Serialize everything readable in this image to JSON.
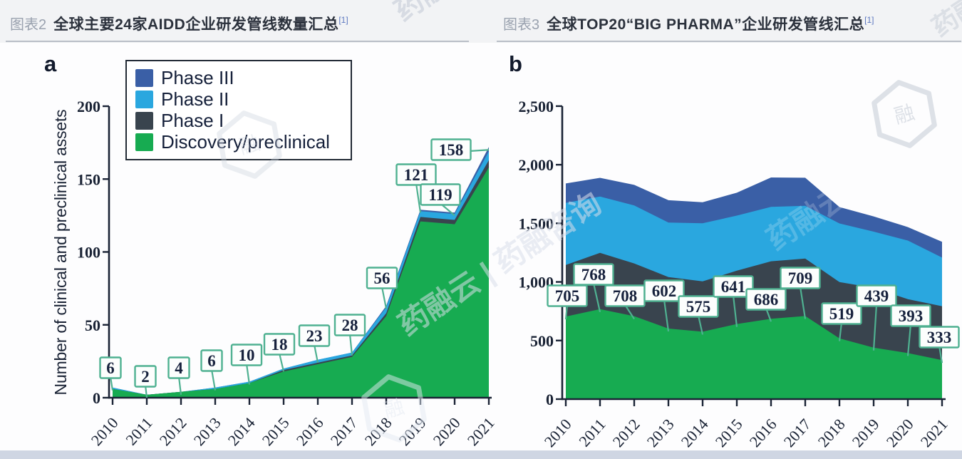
{
  "page": {
    "background": "#f2f3f5",
    "stage_background": "#fdfdfe",
    "footer_strip_color": "#cfd6e3"
  },
  "headers": [
    {
      "tag": "图表2",
      "title": "全球主要24家AIDD企业研发管线数量汇总",
      "sup": "[1]"
    },
    {
      "tag": "图表3",
      "title": "全球TOP20“BIG PHARMA”企业研发管线汇总",
      "sup": "[1]"
    }
  ],
  "watermark": {
    "brand_text": "药融云 | 药融咨询",
    "brand_short": "药融咨询",
    "brand_name": "药融云",
    "logo_char": "融"
  },
  "chart_data": [
    {
      "id": "a",
      "type": "area",
      "panel_label": "a",
      "ylabel": "Number of clinical and preclinical assets",
      "categories": [
        "2010",
        "2011",
        "2012",
        "2013",
        "2014",
        "2015",
        "2016",
        "2017",
        "2018",
        "2019",
        "2020",
        "2021"
      ],
      "ylim": [
        0,
        200
      ],
      "yticks": [
        0,
        50,
        100,
        150,
        200
      ],
      "ytick_labels": [
        "0",
        "50",
        "100",
        "150",
        "200"
      ],
      "grid": false,
      "legend_position": "top-left",
      "legend": [
        {
          "label": "Phase III",
          "color": "#3a5fa6"
        },
        {
          "label": "Phase II",
          "color": "#2aa7df"
        },
        {
          "label": "Phase I",
          "color": "#39444e"
        },
        {
          "label": "Discovery/preclinical",
          "color": "#17ab51"
        }
      ],
      "series": [
        {
          "name": "Discovery/preclinical",
          "color": "#17ab51",
          "values": [
            6,
            2,
            4,
            6,
            10,
            18,
            23,
            28,
            56,
            121,
            119,
            158
          ]
        },
        {
          "name": "Phase I",
          "color": "#39444e",
          "values": [
            0,
            0,
            0,
            0,
            0,
            1,
            1,
            1,
            2,
            3,
            3,
            5
          ]
        },
        {
          "name": "Phase II",
          "color": "#2aa7df",
          "values": [
            1,
            0,
            0,
            1,
            1,
            1,
            2,
            2,
            4,
            4,
            4,
            6
          ]
        },
        {
          "name": "Phase III",
          "color": "#3a5fa6",
          "values": [
            0,
            0,
            0,
            0,
            0,
            0,
            0,
            0,
            1,
            1,
            1,
            3
          ]
        }
      ],
      "data_labels": [
        6,
        2,
        4,
        6,
        10,
        18,
        23,
        28,
        56,
        121,
        119,
        158
      ],
      "data_labels_note": "callout values shown per year (Discovery/preclinical assets)",
      "colors": {
        "axis": "#1a2335",
        "callout_border": "#4fb191",
        "callout_text": "#17223d",
        "callout_fill": "#fcfefd"
      }
    },
    {
      "id": "b",
      "type": "area",
      "panel_label": "b",
      "ylabel": "",
      "categories": [
        "2010",
        "2011",
        "2012",
        "2013",
        "2014",
        "2015",
        "2016",
        "2017",
        "2018",
        "2019",
        "2020",
        "2021"
      ],
      "ylim": [
        0,
        2500
      ],
      "yticks": [
        0,
        500,
        1000,
        1500,
        2000,
        2500
      ],
      "ytick_labels": [
        "0",
        "500",
        "1,000",
        "1,500",
        "2,000",
        "2,500"
      ],
      "grid": false,
      "legend_position": "none",
      "series": [
        {
          "name": "Discovery/preclinical",
          "color": "#17ab51",
          "values": [
            705,
            768,
            708,
            602,
            575,
            641,
            686,
            709,
            519,
            439,
            393,
            333
          ]
        },
        {
          "name": "Phase I",
          "color": "#39444e",
          "values": [
            440,
            480,
            450,
            440,
            430,
            455,
            490,
            490,
            480,
            510,
            460,
            460
          ]
        },
        {
          "name": "Phase II",
          "color": "#2aa7df",
          "values": [
            530,
            480,
            495,
            465,
            495,
            470,
            465,
            450,
            500,
            480,
            500,
            415
          ]
        },
        {
          "name": "Phase III",
          "color": "#3a5fa6",
          "values": [
            165,
            160,
            175,
            190,
            180,
            195,
            250,
            240,
            140,
            130,
            115,
            135
          ]
        }
      ],
      "data_labels": [
        705,
        768,
        708,
        602,
        575,
        641,
        686,
        709,
        519,
        439,
        393,
        333
      ],
      "data_labels_note": "callout values shown per year (Discovery/preclinical assets); phase values estimated from chart",
      "colors": {
        "axis": "#1a2335",
        "callout_border": "#4fb191",
        "callout_text": "#17223d",
        "callout_fill": "#fcfefd"
      }
    }
  ]
}
